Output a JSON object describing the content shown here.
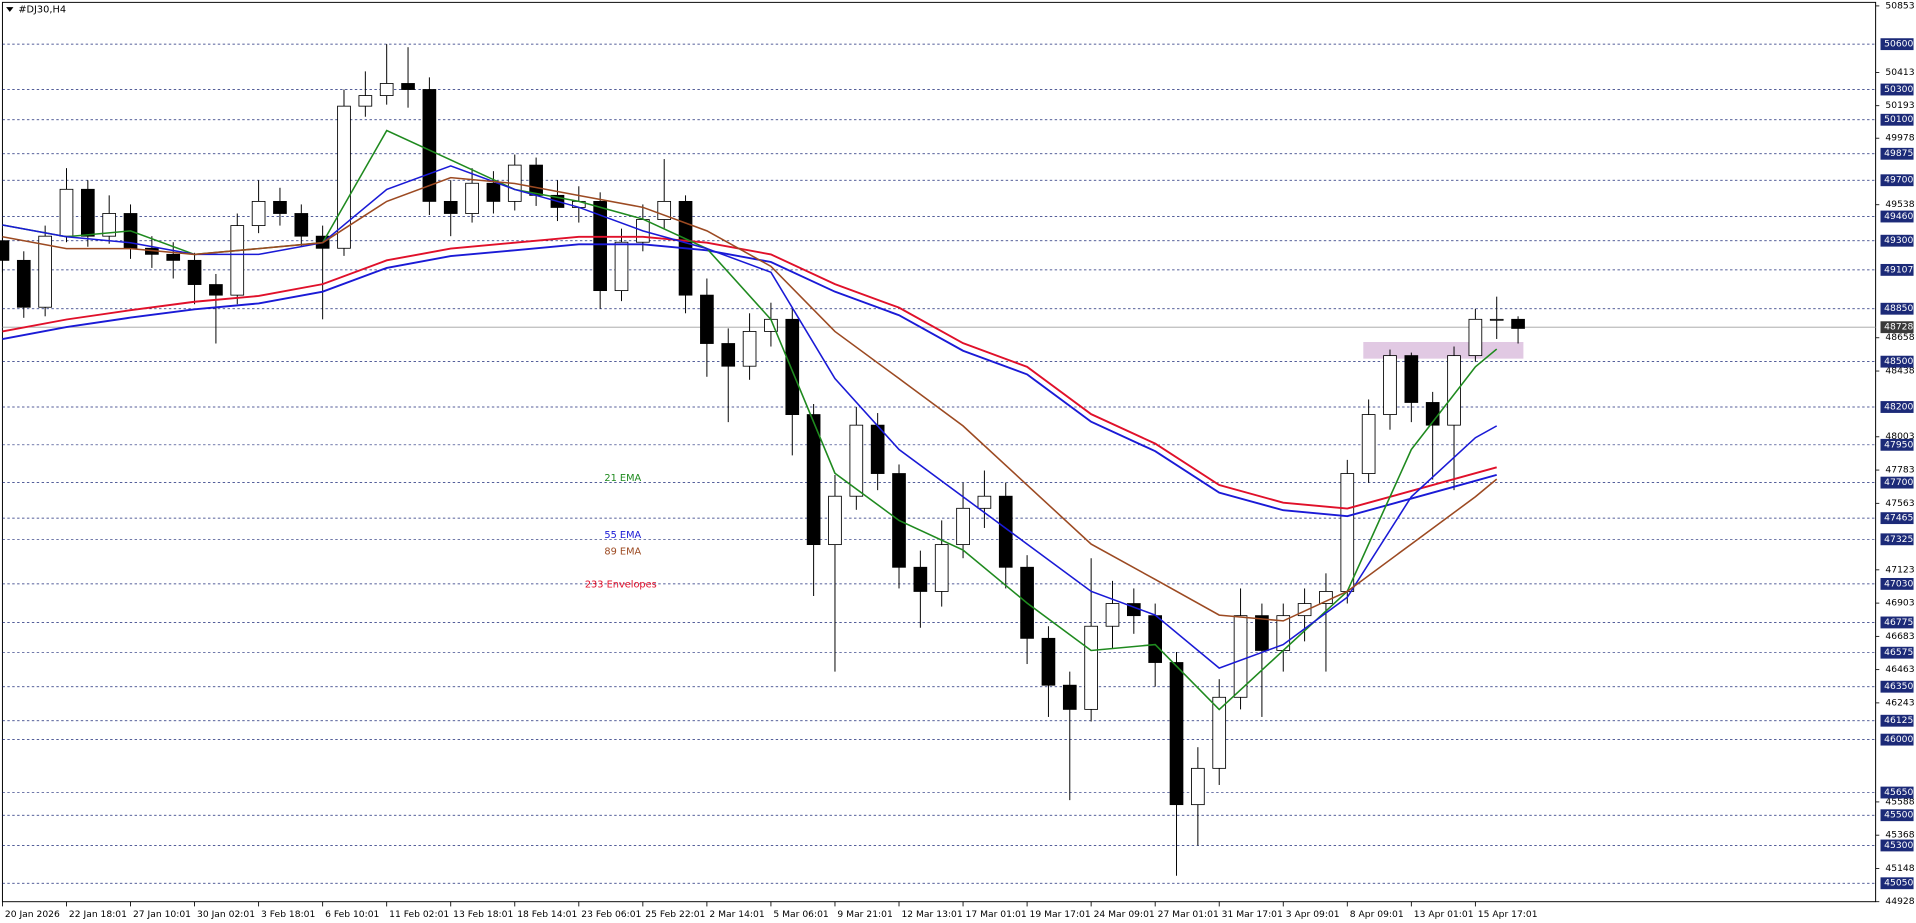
{
  "chart_data": {
    "type": "candlestick",
    "title": "#DJ30,H4",
    "xlim": [
      0,
      351
    ],
    "ylim": [
      44928,
      50853
    ],
    "xticks": [
      {
        "value": 0,
        "label": "20 Jan 2026"
      },
      {
        "value": 12,
        "label": "22 Jan 18:01"
      },
      {
        "value": 24,
        "label": "27 Jan 10:01"
      },
      {
        "value": 36,
        "label": "30 Jan 02:01"
      },
      {
        "value": 48,
        "label": "3 Feb 18:01"
      },
      {
        "value": 60,
        "label": "6 Feb 10:01"
      },
      {
        "value": 72,
        "label": "11 Feb 02:01"
      },
      {
        "value": 84,
        "label": "13 Feb 18:01"
      },
      {
        "value": 96,
        "label": "18 Feb 14:01"
      },
      {
        "value": 108,
        "label": "23 Feb 06:01"
      },
      {
        "value": 120,
        "label": "25 Feb 22:01"
      },
      {
        "value": 132,
        "label": "2 Mar 14:01"
      },
      {
        "value": 144,
        "label": "5 Mar 06:01"
      },
      {
        "value": 156,
        "label": "9 Mar 21:01"
      },
      {
        "value": 168,
        "label": "12 Mar 13:01"
      },
      {
        "value": 180,
        "label": "17 Mar 01:01"
      },
      {
        "value": 192,
        "label": "19 Mar 17:01"
      },
      {
        "value": 204,
        "label": "24 Mar 09:01"
      },
      {
        "value": 216,
        "label": "27 Mar 01:01"
      },
      {
        "value": 228,
        "label": "31 Mar 17:01"
      },
      {
        "value": 240,
        "label": "3 Apr 09:01"
      },
      {
        "value": 252,
        "label": "8 Apr 09:01"
      },
      {
        "value": 264,
        "label": "13 Apr 01:01"
      },
      {
        "value": 276,
        "label": "15 Apr 17:01"
      }
    ],
    "yticks": [
      50853,
      50413,
      50193,
      49978,
      49538,
      48658,
      48438,
      48003,
      47783,
      47563,
      47123,
      46903,
      46683,
      46463,
      46243,
      45588,
      45368,
      45148,
      44928
    ],
    "levels": [
      50600,
      50300,
      50100,
      49875,
      49700,
      49460,
      49300,
      49107,
      48850,
      48500,
      48200,
      47950,
      47700,
      47465,
      47325,
      47030,
      46775,
      46575,
      46350,
      46125,
      46000,
      45650,
      45500,
      45300,
      45050
    ],
    "level_color": "#1c2a78",
    "current_price": 48728,
    "up_color": "#ffffff",
    "down_color": "#000000",
    "x": [
      0,
      4,
      8,
      12,
      16,
      20,
      24,
      28,
      32,
      36,
      40,
      44,
      48,
      52,
      56,
      60,
      64,
      68,
      72,
      76,
      80,
      84,
      88,
      92,
      96,
      100,
      104,
      108,
      112,
      116,
      120,
      124,
      128,
      132,
      136,
      140,
      144,
      148,
      152,
      156,
      160,
      164,
      168,
      172,
      176,
      180,
      184,
      188,
      192,
      196,
      200,
      204,
      208,
      212,
      216,
      220,
      224,
      228,
      232,
      236,
      240,
      244,
      248,
      252,
      256,
      260,
      264,
      268,
      272,
      276,
      280,
      284
    ],
    "open": [
      49300,
      49170,
      48860,
      49330,
      49640,
      49330,
      49480,
      49250,
      49210,
      49170,
      49010,
      48940,
      49400,
      49560,
      49480,
      49330,
      49250,
      50190,
      50260,
      50340,
      50300,
      49560,
      49480,
      49680,
      49560,
      49800,
      49600,
      49520,
      49560,
      48970,
      49290,
      49440,
      49560,
      48940,
      48620,
      48470,
      48700,
      48780,
      48150,
      47290,
      47610,
      48080,
      47760,
      47140,
      46980,
      47290,
      47530,
      47610,
      47140,
      46670,
      46360,
      46200,
      46750,
      46900,
      46820,
      46510,
      45570,
      45810,
      46280,
      46820,
      46590,
      46820,
      46900,
      46980,
      47760,
      48150,
      48540,
      48230,
      48080,
      48540,
      48780,
      48780
    ],
    "high": [
      49380,
      49230,
      49400,
      49780,
      49700,
      49600,
      49540,
      49330,
      49290,
      49220,
      49080,
      49480,
      49700,
      49650,
      49540,
      49400,
      50300,
      50420,
      50600,
      50580,
      50380,
      49700,
      49780,
      49760,
      49870,
      49850,
      49700,
      49660,
      49620,
      49380,
      49540,
      49840,
      49600,
      49050,
      48720,
      48820,
      48890,
      48850,
      48220,
      47750,
      48200,
      48160,
      47820,
      47250,
      47450,
      47700,
      47780,
      47700,
      47220,
      46750,
      46450,
      47200,
      47050,
      47000,
      46900,
      46580,
      45950,
      46400,
      47000,
      46900,
      46900,
      47000,
      47100,
      47850,
      48250,
      48580,
      48560,
      48300,
      48600,
      48850,
      48930,
      48800
    ],
    "low": [
      49090,
      48790,
      48800,
      49290,
      49260,
      49280,
      49180,
      49120,
      49050,
      48880,
      48620,
      48880,
      49350,
      49400,
      49260,
      48780,
      49200,
      50120,
      50200,
      50180,
      49470,
      49330,
      49420,
      49480,
      49500,
      49530,
      49430,
      49420,
      48850,
      48900,
      49230,
      49380,
      48820,
      48400,
      48100,
      48380,
      48600,
      47880,
      46950,
      46450,
      47520,
      47650,
      47000,
      46740,
      46880,
      47200,
      47400,
      47000,
      46500,
      46150,
      45600,
      46120,
      46600,
      46700,
      46350,
      45100,
      45300,
      45700,
      46200,
      46150,
      46450,
      46650,
      46450,
      46900,
      47700,
      48050,
      48100,
      47720,
      47650,
      48500,
      48650,
      48620
    ],
    "close": [
      49170,
      48860,
      49330,
      49640,
      49330,
      49480,
      49250,
      49210,
      49170,
      49010,
      48940,
      49400,
      49560,
      49480,
      49330,
      49250,
      50190,
      50260,
      50340,
      50300,
      49560,
      49480,
      49680,
      49560,
      49800,
      49600,
      49520,
      49560,
      48970,
      49290,
      49440,
      49560,
      48940,
      48620,
      48470,
      48700,
      48780,
      48150,
      47290,
      47610,
      48080,
      47760,
      47140,
      46980,
      47290,
      47530,
      47610,
      47140,
      46670,
      46360,
      46200,
      46750,
      46900,
      46820,
      46510,
      45570,
      45810,
      46280,
      46820,
      46590,
      46820,
      46900,
      46980,
      47760,
      48150,
      48540,
      48230,
      48080,
      48540,
      48780,
      48780,
      48720
    ],
    "lines": [
      {
        "name": "21 EMA",
        "color": "#1f8a1f",
        "x": [
          0,
          12,
          24,
          36,
          48,
          60,
          72,
          84,
          96,
          108,
          120,
          132,
          144,
          156,
          168,
          180,
          192,
          204,
          216,
          228,
          240,
          252,
          264,
          276,
          280
        ],
        "values": [
          49404,
          49326,
          49365,
          49209,
          49248,
          49287,
          50029,
          49834,
          49639,
          49560,
          49443,
          49248,
          48779,
          47762,
          47450,
          47254,
          46903,
          46590,
          46629,
          46199,
          46590,
          46981,
          47919,
          48466,
          48583
        ]
      },
      {
        "name": "55 EMA",
        "color": "#1a1ad6",
        "x": [
          0,
          12,
          24,
          36,
          48,
          60,
          72,
          84,
          96,
          108,
          120,
          132,
          144,
          156,
          168,
          180,
          192,
          204,
          216,
          228,
          240,
          252,
          264,
          276,
          280
        ],
        "values": [
          49404,
          49326,
          49287,
          49209,
          49209,
          49287,
          49639,
          49795,
          49639,
          49521,
          49365,
          49248,
          49091,
          48388,
          47919,
          47606,
          47293,
          46981,
          46824,
          46473,
          46629,
          46942,
          47606,
          47997,
          48075
        ]
      },
      {
        "name": "89 EMA",
        "color": "#9c4a22",
        "x": [
          0,
          12,
          24,
          36,
          48,
          60,
          72,
          84,
          96,
          108,
          120,
          132,
          144,
          156,
          168,
          180,
          192,
          204,
          216,
          228,
          240,
          252,
          264,
          276,
          280
        ],
        "values": [
          49326,
          49248,
          49248,
          49209,
          49248,
          49287,
          49560,
          49717,
          49678,
          49599,
          49521,
          49365,
          49130,
          48700,
          48388,
          48075,
          47684,
          47293,
          47059,
          46824,
          46785,
          46981,
          47293,
          47606,
          47723
        ]
      }
    ],
    "envelope": {
      "name": "233 Envelopes",
      "upper_color": "#e0102a",
      "lower_color": "#1a1ad6",
      "x": [
        0,
        12,
        24,
        36,
        48,
        60,
        72,
        84,
        96,
        108,
        120,
        132,
        144,
        156,
        168,
        180,
        192,
        204,
        216,
        228,
        240,
        252,
        264,
        276,
        280
      ],
      "upper": [
        48700,
        48779,
        48841,
        48896,
        48935,
        49013,
        49170,
        49248,
        49287,
        49326,
        49326,
        49287,
        49209,
        49013,
        48857,
        48622,
        48466,
        48153,
        47958,
        47684,
        47567,
        47528,
        47645,
        47762,
        47801
      ],
      "lower": [
        48650,
        48729,
        48791,
        48846,
        48885,
        48963,
        49120,
        49198,
        49237,
        49276,
        49276,
        49237,
        49159,
        48963,
        48807,
        48572,
        48416,
        48103,
        47908,
        47634,
        47517,
        47478,
        47595,
        47712,
        47751
      ]
    },
    "zone": {
      "color": "#d9bcdc",
      "x": [
        255,
        285
      ],
      "y": [
        48520,
        48630
      ]
    }
  }
}
